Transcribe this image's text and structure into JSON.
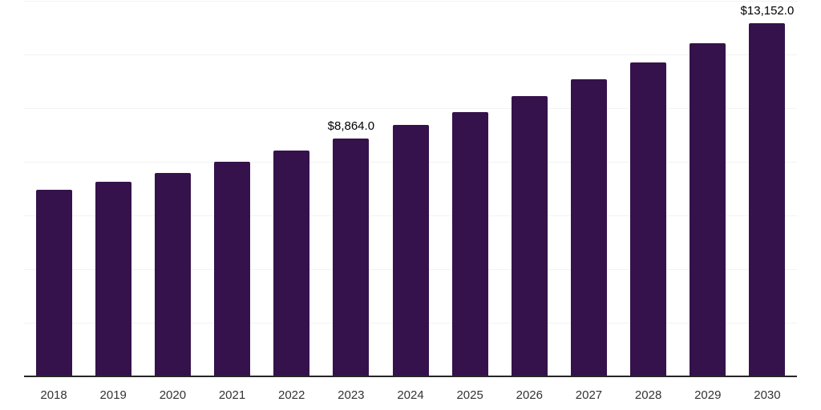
{
  "chart_data": {
    "type": "bar",
    "title": "",
    "xlabel": "",
    "ylabel": "",
    "categories": [
      "2018",
      "2019",
      "2020",
      "2021",
      "2022",
      "2023",
      "2024",
      "2025",
      "2026",
      "2027",
      "2028",
      "2029",
      "2030"
    ],
    "values": [
      6960,
      7240,
      7570,
      8000,
      8420,
      8864,
      9370,
      9865,
      10460,
      11060,
      11700,
      12410,
      13152
    ],
    "annotations": [
      {
        "category": "2023",
        "label": "$8,864.0"
      },
      {
        "category": "2030",
        "label": "$13,152.0"
      }
    ],
    "ylim": [
      0,
      14000
    ],
    "gridline_step": 2000,
    "grid": "horizontal",
    "legend": "none",
    "colors": {
      "bar": "#35124B",
      "gridline": "#f2f2f2",
      "axis_line": "#262626",
      "tick_label": "#333333",
      "data_label": "#000000",
      "background": "#ffffff"
    }
  }
}
